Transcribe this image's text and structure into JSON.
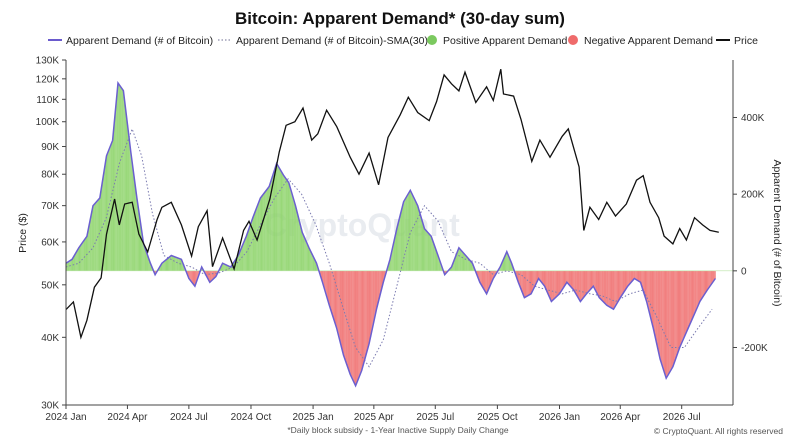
{
  "chart_data": {
    "type": "line",
    "title": "Bitcoin: Apparent Demand* (30-day sum)",
    "footnote": "*Daily block subsidy - 1-Year Inactive Supply Daily Change",
    "credit": "© CryptoQuant. All rights reserved",
    "watermark": "CryptoQuant",
    "ylabel_left": "Price ($)",
    "ylabel_right": "Apparent Demand (# of Bitcoin)",
    "y_left_scale": "log",
    "y_left_range": [
      30000,
      130000
    ],
    "y_left_ticks": [
      {
        "v": 130000,
        "label": "130K"
      },
      {
        "v": 120000,
        "label": "120K"
      },
      {
        "v": 110000,
        "label": "110K"
      },
      {
        "v": 100000,
        "label": "100K"
      },
      {
        "v": 90000,
        "label": "90K"
      },
      {
        "v": 80000,
        "label": "80K"
      },
      {
        "v": 70000,
        "label": "70K"
      },
      {
        "v": 60000,
        "label": "60K"
      },
      {
        "v": 50000,
        "label": "50K"
      },
      {
        "v": 40000,
        "label": "40K"
      },
      {
        "v": 30000,
        "label": "30K"
      }
    ],
    "y_right_range": [
      -350000,
      550000
    ],
    "y_right_ticks": [
      {
        "v": 400000,
        "label": "400K"
      },
      {
        "v": 200000,
        "label": "200K"
      },
      {
        "v": 0,
        "label": "0"
      },
      {
        "v": -200000,
        "label": "-200K"
      }
    ],
    "x_range": [
      "2024-01-01",
      "2026-09-15"
    ],
    "x_ticks": [
      {
        "d": "2024-01-01",
        "label": "2024 Jan"
      },
      {
        "d": "2024-04-01",
        "label": "2024 Apr"
      },
      {
        "d": "2024-07-01",
        "label": "2024 Jul"
      },
      {
        "d": "2024-10-01",
        "label": "2024 Oct"
      },
      {
        "d": "2025-01-01",
        "label": "2025 Jan"
      },
      {
        "d": "2025-04-01",
        "label": "2025 Apr"
      },
      {
        "d": "2025-07-01",
        "label": "2025 Jul"
      },
      {
        "d": "2025-10-01",
        "label": "2025 Oct"
      },
      {
        "d": "2026-01-01",
        "label": "2026 Jan"
      },
      {
        "d": "2026-04-01",
        "label": "2026 Apr"
      },
      {
        "d": "2026-07-01",
        "label": "2026 Jul"
      }
    ],
    "legend": [
      {
        "name": "Apparent Demand (# of Bitcoin)",
        "style": "line",
        "color": "#6a5acd"
      },
      {
        "name": "Apparent Demand (# of Bitcoin)-SMA(30)",
        "style": "dotted",
        "color": "#8a8aa8"
      },
      {
        "name": "Positive Apparent Demand",
        "style": "dot",
        "color": "#7bc95f"
      },
      {
        "name": "Negative Apparent Demand",
        "style": "dot",
        "color": "#ef6b6b"
      },
      {
        "name": "Price",
        "style": "line",
        "color": "#111111"
      }
    ],
    "colors": {
      "positive": "#8fd46c",
      "negative": "#f07272",
      "demand_line": "#6b5fd0",
      "sma": "#7a7ab0",
      "price": "#111111"
    },
    "series": [
      {
        "name": "Price",
        "axis": "left",
        "points": [
          [
            "2024-01-01",
            45000
          ],
          [
            "2024-01-12",
            46500
          ],
          [
            "2024-01-23",
            40000
          ],
          [
            "2024-02-01",
            43000
          ],
          [
            "2024-02-12",
            49500
          ],
          [
            "2024-02-22",
            51500
          ],
          [
            "2024-03-01",
            62000
          ],
          [
            "2024-03-13",
            72000
          ],
          [
            "2024-03-20",
            64500
          ],
          [
            "2024-03-28",
            70500
          ],
          [
            "2024-04-08",
            71000
          ],
          [
            "2024-04-18",
            62000
          ],
          [
            "2024-05-01",
            57500
          ],
          [
            "2024-05-15",
            66000
          ],
          [
            "2024-05-22",
            69500
          ],
          [
            "2024-06-05",
            71000
          ],
          [
            "2024-06-20",
            64500
          ],
          [
            "2024-07-05",
            56500
          ],
          [
            "2024-07-15",
            64000
          ],
          [
            "2024-07-28",
            68500
          ],
          [
            "2024-08-05",
            54000
          ],
          [
            "2024-08-20",
            61000
          ],
          [
            "2024-09-06",
            53500
          ],
          [
            "2024-09-20",
            63000
          ],
          [
            "2024-09-28",
            65500
          ],
          [
            "2024-10-10",
            60500
          ],
          [
            "2024-10-29",
            72000
          ],
          [
            "2024-11-12",
            88000
          ],
          [
            "2024-11-22",
            98500
          ],
          [
            "2024-12-05",
            100000
          ],
          [
            "2024-12-17",
            106000
          ],
          [
            "2024-12-30",
            92500
          ],
          [
            "2025-01-08",
            95000
          ],
          [
            "2025-01-21",
            105000
          ],
          [
            "2025-02-05",
            98000
          ],
          [
            "2025-02-25",
            86000
          ],
          [
            "2025-03-10",
            80000
          ],
          [
            "2025-03-25",
            87500
          ],
          [
            "2025-04-08",
            76500
          ],
          [
            "2025-04-22",
            93500
          ],
          [
            "2025-05-10",
            103000
          ],
          [
            "2025-05-22",
            111000
          ],
          [
            "2025-06-05",
            104000
          ],
          [
            "2025-06-22",
            100500
          ],
          [
            "2025-07-03",
            109000
          ],
          [
            "2025-07-14",
            122000
          ],
          [
            "2025-07-25",
            117500
          ],
          [
            "2025-08-05",
            114000
          ],
          [
            "2025-08-14",
            123500
          ],
          [
            "2025-08-30",
            108500
          ],
          [
            "2025-09-15",
            116000
          ],
          [
            "2025-09-25",
            109500
          ],
          [
            "2025-10-06",
            125000
          ],
          [
            "2025-10-10",
            112500
          ],
          [
            "2025-10-25",
            111500
          ],
          [
            "2025-11-05",
            101000
          ],
          [
            "2025-11-21",
            84500
          ],
          [
            "2025-12-03",
            92500
          ],
          [
            "2025-12-18",
            86000
          ],
          [
            "2026-01-05",
            94000
          ],
          [
            "2026-01-14",
            97000
          ],
          [
            "2026-01-30",
            82500
          ],
          [
            "2026-02-06",
            63000
          ],
          [
            "2026-02-15",
            69500
          ],
          [
            "2026-02-28",
            66000
          ],
          [
            "2026-03-12",
            71000
          ],
          [
            "2026-03-25",
            67000
          ],
          [
            "2026-04-10",
            70500
          ],
          [
            "2026-04-25",
            78000
          ],
          [
            "2026-05-05",
            79500
          ],
          [
            "2026-05-15",
            71000
          ],
          [
            "2026-05-28",
            66500
          ],
          [
            "2026-06-05",
            61500
          ],
          [
            "2026-06-18",
            59500
          ],
          [
            "2026-06-28",
            63500
          ],
          [
            "2026-07-08",
            60500
          ],
          [
            "2026-07-20",
            66500
          ],
          [
            "2026-08-01",
            64500
          ],
          [
            "2026-08-12",
            63000
          ],
          [
            "2026-08-25",
            62500
          ]
        ]
      },
      {
        "name": "Apparent Demand (# of Bitcoin)",
        "axis": "right",
        "points": [
          [
            "2024-01-01",
            20000
          ],
          [
            "2024-01-10",
            30000
          ],
          [
            "2024-01-20",
            60000
          ],
          [
            "2024-02-01",
            90000
          ],
          [
            "2024-02-10",
            170000
          ],
          [
            "2024-02-20",
            190000
          ],
          [
            "2024-03-01",
            300000
          ],
          [
            "2024-03-10",
            340000
          ],
          [
            "2024-03-18",
            490000
          ],
          [
            "2024-03-26",
            470000
          ],
          [
            "2024-04-06",
            310000
          ],
          [
            "2024-04-15",
            190000
          ],
          [
            "2024-04-25",
            70000
          ],
          [
            "2024-05-05",
            20000
          ],
          [
            "2024-05-12",
            -10000
          ],
          [
            "2024-05-22",
            20000
          ],
          [
            "2024-06-05",
            40000
          ],
          [
            "2024-06-20",
            30000
          ],
          [
            "2024-07-01",
            -20000
          ],
          [
            "2024-07-10",
            -40000
          ],
          [
            "2024-07-20",
            10000
          ],
          [
            "2024-08-01",
            -30000
          ],
          [
            "2024-08-10",
            -15000
          ],
          [
            "2024-08-20",
            20000
          ],
          [
            "2024-09-01",
            10000
          ],
          [
            "2024-09-12",
            40000
          ],
          [
            "2024-09-24",
            90000
          ],
          [
            "2024-10-04",
            140000
          ],
          [
            "2024-10-15",
            190000
          ],
          [
            "2024-10-28",
            220000
          ],
          [
            "2024-11-08",
            280000
          ],
          [
            "2024-11-18",
            250000
          ],
          [
            "2024-11-26",
            230000
          ],
          [
            "2024-12-06",
            170000
          ],
          [
            "2024-12-16",
            100000
          ],
          [
            "2024-12-26",
            60000
          ],
          [
            "2025-01-06",
            20000
          ],
          [
            "2025-01-15",
            -30000
          ],
          [
            "2025-01-25",
            -90000
          ],
          [
            "2025-02-05",
            -150000
          ],
          [
            "2025-02-15",
            -220000
          ],
          [
            "2025-02-25",
            -270000
          ],
          [
            "2025-03-05",
            -300000
          ],
          [
            "2025-03-14",
            -260000
          ],
          [
            "2025-03-25",
            -190000
          ],
          [
            "2025-04-05",
            -100000
          ],
          [
            "2025-04-15",
            -30000
          ],
          [
            "2025-04-25",
            30000
          ],
          [
            "2025-05-05",
            110000
          ],
          [
            "2025-05-15",
            180000
          ],
          [
            "2025-05-25",
            210000
          ],
          [
            "2025-06-05",
            170000
          ],
          [
            "2025-06-15",
            110000
          ],
          [
            "2025-06-25",
            90000
          ],
          [
            "2025-07-05",
            40000
          ],
          [
            "2025-07-15",
            -10000
          ],
          [
            "2025-07-25",
            10000
          ],
          [
            "2025-08-05",
            60000
          ],
          [
            "2025-08-15",
            40000
          ],
          [
            "2025-08-25",
            20000
          ],
          [
            "2025-09-05",
            -30000
          ],
          [
            "2025-09-15",
            -60000
          ],
          [
            "2025-09-25",
            -20000
          ],
          [
            "2025-10-05",
            10000
          ],
          [
            "2025-10-15",
            50000
          ],
          [
            "2025-10-22",
            20000
          ],
          [
            "2025-11-01",
            -30000
          ],
          [
            "2025-11-10",
            -70000
          ],
          [
            "2025-11-20",
            -60000
          ],
          [
            "2025-12-01",
            -20000
          ],
          [
            "2025-12-10",
            -40000
          ],
          [
            "2025-12-20",
            -80000
          ],
          [
            "2026-01-01",
            -60000
          ],
          [
            "2026-01-12",
            -30000
          ],
          [
            "2026-01-22",
            -50000
          ],
          [
            "2026-02-01",
            -80000
          ],
          [
            "2026-02-10",
            -60000
          ],
          [
            "2026-02-20",
            -40000
          ],
          [
            "2026-03-01",
            -70000
          ],
          [
            "2026-03-12",
            -90000
          ],
          [
            "2026-03-22",
            -100000
          ],
          [
            "2026-04-01",
            -70000
          ],
          [
            "2026-04-12",
            -40000
          ],
          [
            "2026-04-22",
            -20000
          ],
          [
            "2026-05-01",
            -30000
          ],
          [
            "2026-05-10",
            -80000
          ],
          [
            "2026-05-20",
            -150000
          ],
          [
            "2026-05-30",
            -230000
          ],
          [
            "2026-06-08",
            -280000
          ],
          [
            "2026-06-18",
            -250000
          ],
          [
            "2026-06-28",
            -200000
          ],
          [
            "2026-07-08",
            -160000
          ],
          [
            "2026-07-18",
            -120000
          ],
          [
            "2026-07-28",
            -80000
          ],
          [
            "2026-08-08",
            -50000
          ],
          [
            "2026-08-20",
            -20000
          ]
        ]
      },
      {
        "name": "Apparent Demand (# of Bitcoin)-SMA(30)",
        "axis": "right",
        "points": [
          [
            "2024-01-01",
            10000
          ],
          [
            "2024-01-20",
            20000
          ],
          [
            "2024-02-10",
            60000
          ],
          [
            "2024-03-01",
            140000
          ],
          [
            "2024-03-20",
            280000
          ],
          [
            "2024-04-08",
            370000
          ],
          [
            "2024-04-22",
            300000
          ],
          [
            "2024-05-08",
            150000
          ],
          [
            "2024-05-25",
            40000
          ],
          [
            "2024-06-15",
            20000
          ],
          [
            "2024-07-05",
            10000
          ],
          [
            "2024-07-25",
            -10000
          ],
          [
            "2024-08-15",
            -5000
          ],
          [
            "2024-09-05",
            10000
          ],
          [
            "2024-09-25",
            50000
          ],
          [
            "2024-10-15",
            120000
          ],
          [
            "2024-11-05",
            190000
          ],
          [
            "2024-11-25",
            240000
          ],
          [
            "2024-12-15",
            200000
          ],
          [
            "2025-01-05",
            120000
          ],
          [
            "2025-01-25",
            20000
          ],
          [
            "2025-02-15",
            -100000
          ],
          [
            "2025-03-05",
            -200000
          ],
          [
            "2025-03-25",
            -250000
          ],
          [
            "2025-04-15",
            -180000
          ],
          [
            "2025-05-05",
            -40000
          ],
          [
            "2025-05-25",
            100000
          ],
          [
            "2025-06-15",
            170000
          ],
          [
            "2025-07-05",
            130000
          ],
          [
            "2025-07-25",
            50000
          ],
          [
            "2025-08-15",
            30000
          ],
          [
            "2025-09-05",
            20000
          ],
          [
            "2025-09-25",
            -10000
          ],
          [
            "2025-10-15",
            0
          ],
          [
            "2025-11-05",
            -10000
          ],
          [
            "2025-11-25",
            -40000
          ],
          [
            "2025-12-15",
            -50000
          ],
          [
            "2026-01-05",
            -60000
          ],
          [
            "2026-01-25",
            -50000
          ],
          [
            "2026-02-15",
            -60000
          ],
          [
            "2026-03-05",
            -65000
          ],
          [
            "2026-03-25",
            -80000
          ],
          [
            "2026-04-15",
            -60000
          ],
          [
            "2026-05-05",
            -50000
          ],
          [
            "2026-05-25",
            -120000
          ],
          [
            "2026-06-15",
            -200000
          ],
          [
            "2026-07-05",
            -200000
          ],
          [
            "2026-07-25",
            -150000
          ],
          [
            "2026-08-15",
            -100000
          ]
        ]
      }
    ]
  }
}
